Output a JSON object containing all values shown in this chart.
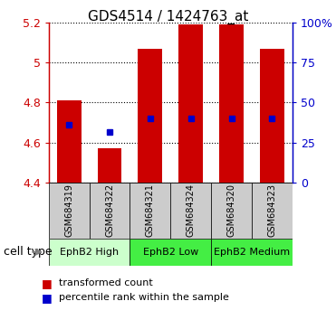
{
  "title": "GDS4514 / 1424763_at",
  "samples": [
    "GSM684319",
    "GSM684322",
    "GSM684321",
    "GSM684324",
    "GSM684320",
    "GSM684323"
  ],
  "bar_tops": [
    4.81,
    4.57,
    5.07,
    5.19,
    5.19,
    5.07
  ],
  "bar_bottom": 4.4,
  "percentile_values": [
    4.69,
    4.65,
    4.72,
    4.72,
    4.72,
    4.72
  ],
  "bar_color": "#cc0000",
  "dot_color": "#0000cc",
  "ylim_left": [
    4.4,
    5.2
  ],
  "ylim_right": [
    0,
    100
  ],
  "yticks_left": [
    4.4,
    4.6,
    4.8,
    5.0,
    5.2
  ],
  "yticks_right": [
    0,
    25,
    50,
    75,
    100
  ],
  "ytick_labels_left": [
    "4.4",
    "4.6",
    "4.8",
    "5",
    "5.2"
  ],
  "ytick_labels_right": [
    "0",
    "25",
    "50",
    "75",
    "100%"
  ],
  "cell_configs": [
    {
      "label": "EphB2 High",
      "start": 0,
      "end": 2,
      "color": "#ccffcc"
    },
    {
      "label": "EphB2 Low",
      "start": 2,
      "end": 4,
      "color": "#44ee44"
    },
    {
      "label": "EphB2 Medium",
      "start": 4,
      "end": 6,
      "color": "#44ee44"
    }
  ],
  "cell_type_label": "cell type",
  "legend_items": [
    {
      "color": "#cc0000",
      "label": "transformed count"
    },
    {
      "color": "#0000cc",
      "label": "percentile rank within the sample"
    }
  ],
  "bar_width": 0.6,
  "sample_box_color": "#cccccc",
  "title_fontsize": 11,
  "tick_fontsize": 9,
  "sample_fontsize": 7,
  "celltype_fontsize": 8,
  "legend_fontsize": 8
}
